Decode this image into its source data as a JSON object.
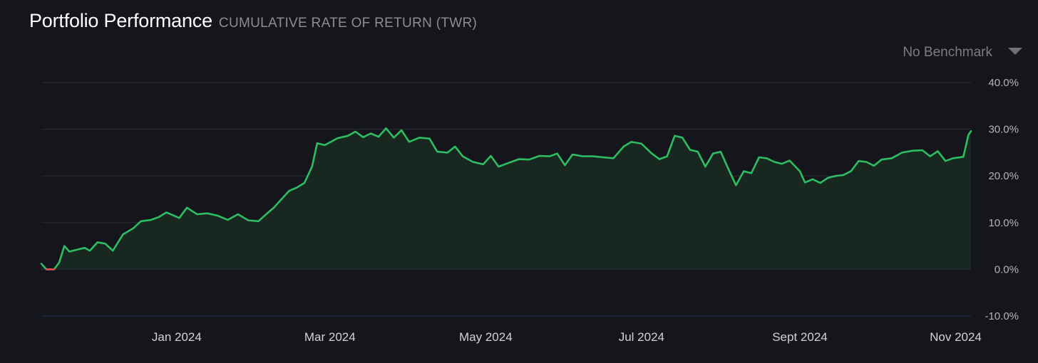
{
  "header": {
    "title": "Portfolio Performance",
    "subtitle": "CUMULATIVE RATE OF RETURN (TWR)"
  },
  "benchmark": {
    "label": "No Benchmark",
    "icon": "caret-down-icon"
  },
  "colors": {
    "background": "#15151c",
    "line_positive": "#2dbd63",
    "line_negative": "#e5484d",
    "area_fill": "#18271f",
    "gridline": "#2a2d35",
    "zero_line": "#3a3d45",
    "bottom_axis": "#24305a"
  },
  "chart_data": {
    "type": "area",
    "title": "Portfolio Performance",
    "subtitle": "CUMULATIVE RATE OF RETURN (TWR)",
    "xlabel": "",
    "ylabel": "",
    "ylim": [
      -10,
      40
    ],
    "y_unit": "%",
    "yticks": [
      "40.0%",
      "30.0%",
      "20.0%",
      "10.0%",
      "0.0%",
      "-10.0%"
    ],
    "xticks": [
      "Jan 2024",
      "Mar 2024",
      "May 2024",
      "Jul 2024",
      "Sept 2024",
      "Nov 2024"
    ],
    "grid": true,
    "legend": "none",
    "x_range": [
      "2023-11-09",
      "2024-11-07"
    ],
    "series": [
      {
        "points": [
          [
            "2023-11-09",
            1.2
          ],
          [
            "2023-11-11",
            0.0
          ],
          [
            "2023-11-14",
            0.0
          ],
          [
            "2023-11-16",
            1.5
          ],
          [
            "2023-11-18",
            5.0
          ],
          [
            "2023-11-20",
            3.8
          ],
          [
            "2023-11-23",
            4.2
          ],
          [
            "2023-11-26",
            4.6
          ],
          [
            "2023-11-28",
            4.0
          ],
          [
            "2023-12-01",
            5.8
          ],
          [
            "2023-12-04",
            5.5
          ],
          [
            "2023-12-07",
            4.0
          ],
          [
            "2023-12-11",
            7.5
          ],
          [
            "2023-12-15",
            8.8
          ],
          [
            "2023-12-18",
            10.3
          ],
          [
            "2023-12-22",
            10.6
          ],
          [
            "2023-12-25",
            11.2
          ],
          [
            "2023-12-28",
            12.2
          ],
          [
            "2024-01-02",
            11.0
          ],
          [
            "2024-01-05",
            13.2
          ],
          [
            "2024-01-09",
            11.8
          ],
          [
            "2024-01-13",
            12.0
          ],
          [
            "2024-01-17",
            11.5
          ],
          [
            "2024-01-21",
            10.6
          ],
          [
            "2024-01-25",
            11.8
          ],
          [
            "2024-01-29",
            10.5
          ],
          [
            "2024-02-02",
            10.3
          ],
          [
            "2024-02-05",
            11.8
          ],
          [
            "2024-02-08",
            13.2
          ],
          [
            "2024-02-11",
            15.0
          ],
          [
            "2024-02-14",
            16.8
          ],
          [
            "2024-02-17",
            17.5
          ],
          [
            "2024-02-20",
            18.5
          ],
          [
            "2024-02-23",
            22.0
          ],
          [
            "2024-02-25",
            27.0
          ],
          [
            "2024-02-28",
            26.6
          ],
          [
            "2024-03-01",
            27.2
          ],
          [
            "2024-03-04",
            28.1
          ],
          [
            "2024-03-08",
            28.6
          ],
          [
            "2024-03-11",
            29.5
          ],
          [
            "2024-03-14",
            28.3
          ],
          [
            "2024-03-17",
            29.1
          ],
          [
            "2024-03-20",
            28.4
          ],
          [
            "2024-03-23",
            30.2
          ],
          [
            "2024-03-26",
            28.2
          ],
          [
            "2024-03-29",
            29.8
          ],
          [
            "2024-04-01",
            27.3
          ],
          [
            "2024-04-05",
            28.2
          ],
          [
            "2024-04-09",
            28.0
          ],
          [
            "2024-04-12",
            25.2
          ],
          [
            "2024-04-16",
            25.0
          ],
          [
            "2024-04-19",
            26.3
          ],
          [
            "2024-04-22",
            24.2
          ],
          [
            "2024-04-26",
            23.0
          ],
          [
            "2024-04-30",
            22.5
          ],
          [
            "2024-05-03",
            24.3
          ],
          [
            "2024-05-06",
            22.0
          ],
          [
            "2024-05-10",
            22.8
          ],
          [
            "2024-05-14",
            23.6
          ],
          [
            "2024-05-18",
            23.5
          ],
          [
            "2024-05-22",
            24.3
          ],
          [
            "2024-05-26",
            24.2
          ],
          [
            "2024-05-29",
            24.8
          ],
          [
            "2024-06-01",
            22.3
          ],
          [
            "2024-06-04",
            24.6
          ],
          [
            "2024-06-08",
            24.2
          ],
          [
            "2024-06-12",
            24.2
          ],
          [
            "2024-06-16",
            24.0
          ],
          [
            "2024-06-20",
            23.8
          ],
          [
            "2024-06-24",
            26.3
          ],
          [
            "2024-06-27",
            27.3
          ],
          [
            "2024-07-01",
            26.9
          ],
          [
            "2024-07-05",
            24.8
          ],
          [
            "2024-07-08",
            23.6
          ],
          [
            "2024-07-11",
            24.2
          ],
          [
            "2024-07-14",
            28.6
          ],
          [
            "2024-07-17",
            28.2
          ],
          [
            "2024-07-20",
            25.6
          ],
          [
            "2024-07-23",
            25.2
          ],
          [
            "2024-07-26",
            22.0
          ],
          [
            "2024-07-29",
            24.8
          ],
          [
            "2024-08-01",
            25.2
          ],
          [
            "2024-08-04",
            21.5
          ],
          [
            "2024-08-07",
            18.0
          ],
          [
            "2024-08-10",
            21.0
          ],
          [
            "2024-08-13",
            20.6
          ],
          [
            "2024-08-16",
            24.0
          ],
          [
            "2024-08-19",
            23.8
          ],
          [
            "2024-08-22",
            23.0
          ],
          [
            "2024-08-25",
            22.6
          ],
          [
            "2024-08-28",
            23.3
          ],
          [
            "2024-09-01",
            21.0
          ],
          [
            "2024-09-03",
            18.6
          ],
          [
            "2024-09-06",
            19.3
          ],
          [
            "2024-09-09",
            18.5
          ],
          [
            "2024-09-12",
            19.6
          ],
          [
            "2024-09-15",
            20.0
          ],
          [
            "2024-09-18",
            20.2
          ],
          [
            "2024-09-21",
            21.0
          ],
          [
            "2024-09-24",
            23.2
          ],
          [
            "2024-09-27",
            23.0
          ],
          [
            "2024-09-30",
            22.2
          ],
          [
            "2024-10-03",
            23.5
          ],
          [
            "2024-10-07",
            23.8
          ],
          [
            "2024-10-11",
            25.0
          ],
          [
            "2024-10-15",
            25.4
          ],
          [
            "2024-10-19",
            25.5
          ],
          [
            "2024-10-22",
            24.2
          ],
          [
            "2024-10-25",
            25.3
          ],
          [
            "2024-10-28",
            23.2
          ],
          [
            "2024-10-31",
            23.8
          ],
          [
            "2024-11-04",
            24.1
          ],
          [
            "2024-11-06",
            28.8
          ],
          [
            "2024-11-07",
            29.6
          ]
        ]
      }
    ]
  }
}
